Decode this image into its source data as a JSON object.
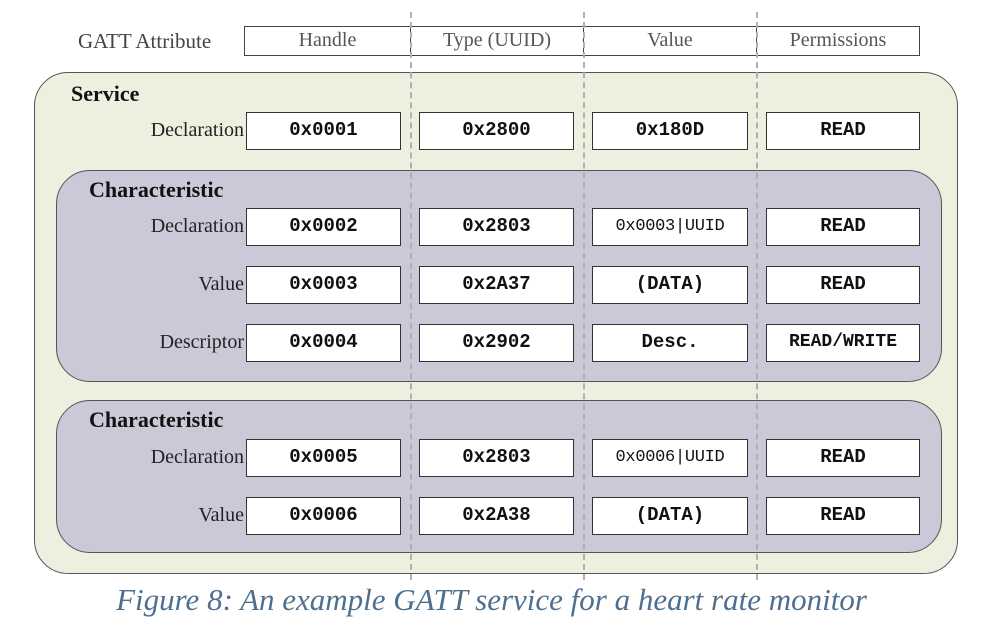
{
  "header": {
    "label": "GATT Attribute",
    "columns": [
      "Handle",
      "Type (UUID)",
      "Value",
      "Permissions"
    ]
  },
  "service": {
    "title": "Service",
    "declaration": {
      "label": "Declaration",
      "handle": "0x0001",
      "type": "0x2800",
      "value": "0x180D",
      "permissions": "READ"
    }
  },
  "characteristics": [
    {
      "title": "Characteristic",
      "rows": [
        {
          "label": "Declaration",
          "handle": "0x0002",
          "type": "0x2803",
          "value": "0x0003|UUID",
          "permissions": "READ"
        },
        {
          "label": "Value",
          "handle": "0x0003",
          "type": "0x2A37",
          "value": "(DATA)",
          "permissions": "READ"
        },
        {
          "label": "Descriptor",
          "handle": "0x0004",
          "type": "0x2902",
          "value": "Desc.",
          "permissions": "READ/WRITE"
        }
      ]
    },
    {
      "title": "Characteristic",
      "rows": [
        {
          "label": "Declaration",
          "handle": "0x0005",
          "type": "0x2803",
          "value": "0x0006|UUID",
          "permissions": "READ"
        },
        {
          "label": "Value",
          "handle": "0x0006",
          "type": "0x2A38",
          "value": "(DATA)",
          "permissions": "READ"
        }
      ]
    }
  ],
  "caption": "Figure 8: An example GATT service for a heart rate monitor",
  "colors": {
    "service_fill": "#ebf1de",
    "characteristic_fill": "#ccc8d8",
    "caption_text": "#4f6f90"
  }
}
